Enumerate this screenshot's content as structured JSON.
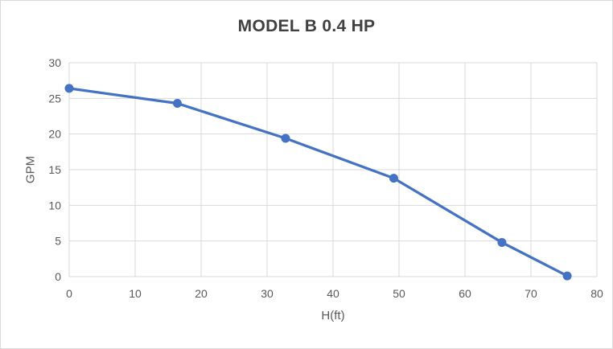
{
  "chart_data": {
    "type": "line",
    "title": "MODEL B 0.4 HP",
    "xlabel": "H(ft)",
    "ylabel": "GPM",
    "x": [
      0,
      16.4,
      32.8,
      49.2,
      65.6,
      75.5
    ],
    "y": [
      26.4,
      24.3,
      19.4,
      13.8,
      4.8,
      0.1
    ],
    "xlim": [
      0,
      80
    ],
    "ylim": [
      0,
      30
    ],
    "x_ticks": [
      0,
      10,
      20,
      30,
      40,
      50,
      60,
      70,
      80
    ],
    "y_ticks": [
      0,
      5,
      10,
      15,
      20,
      25,
      30
    ],
    "grid": true,
    "legend": false,
    "colors": {
      "line": "#4472C4",
      "marker": "#4472C4",
      "gridline": "#D9D9D9",
      "tick_label": "#595959",
      "axis_title": "#595959",
      "title": "#404040",
      "background": "#FFFFFF",
      "border": "#D9D9D9"
    }
  }
}
